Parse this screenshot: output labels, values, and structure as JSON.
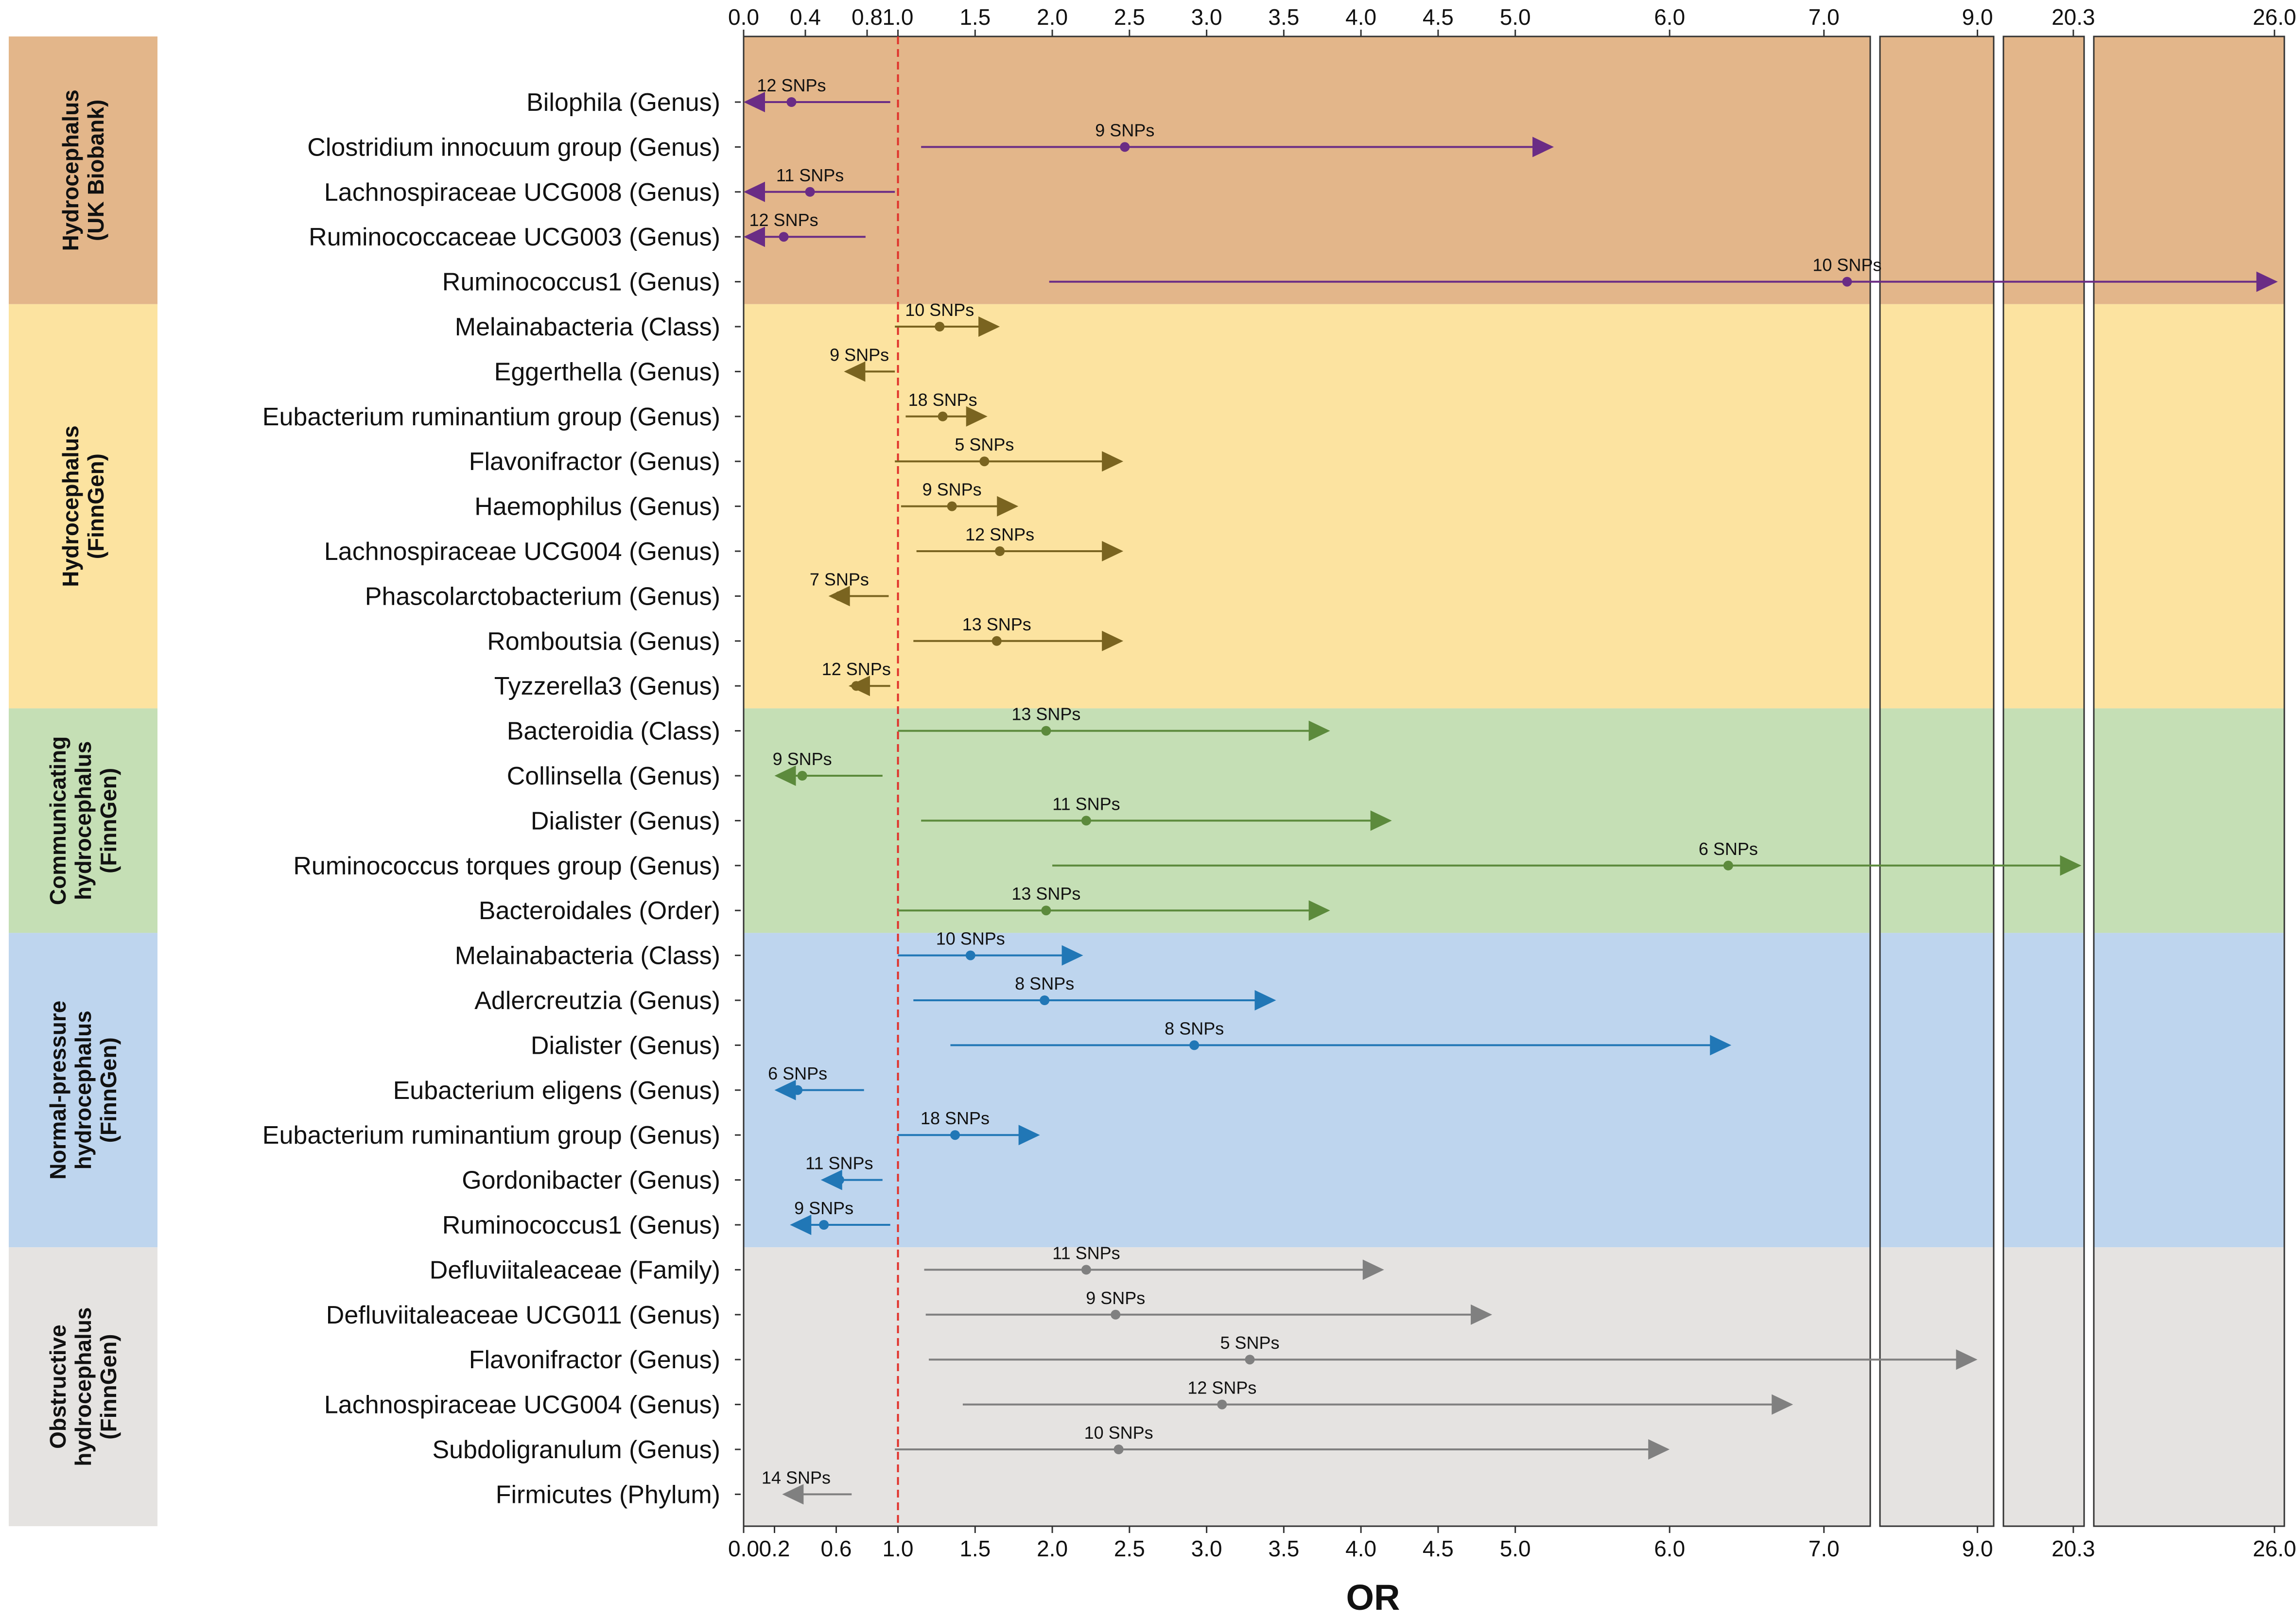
{
  "chart_data": {
    "type": "forest",
    "xlabel": "OR",
    "reference_line": 1.0,
    "segments": [
      {
        "min": 0.0,
        "max": 7.3,
        "top_ticks": [
          "0.0",
          "0.4",
          "0.8",
          "1.0",
          "1.5",
          "2.0",
          "2.5",
          "3.0",
          "3.5",
          "4.0",
          "4.5",
          "5.0",
          "6.0",
          "7.0"
        ],
        "bottom_ticks": [
          "0.0",
          "0.2",
          "0.6",
          "1.0",
          "1.5",
          "2.0",
          "2.5",
          "3.0",
          "3.5",
          "4.0",
          "4.5",
          "5.0",
          "6.0",
          "7.0"
        ]
      },
      {
        "min": 7.8,
        "max": 9.2,
        "top_ticks": [
          "9.0"
        ],
        "bottom_ticks": [
          "9.0"
        ]
      },
      {
        "min": 19.0,
        "max": 20.5,
        "top_ticks": [
          "20.3"
        ],
        "bottom_ticks": [
          "20.3"
        ]
      },
      {
        "min": 20.5,
        "max": 26.3,
        "top_ticks": [
          "26.0"
        ],
        "bottom_ticks": [
          "26.0"
        ]
      }
    ],
    "groups": [
      {
        "label_lines": [
          "Hydrocephalus",
          "(UK Biobank)"
        ],
        "bg": "#E3B68A",
        "line_color": "#6A2C85",
        "rows": [
          {
            "label": "Bilophila (Genus)",
            "or": 0.31,
            "lo": 0.0,
            "hi": 0.95,
            "snps": "12 SNPs",
            "arrow_left": true,
            "arrow_right": false
          },
          {
            "label": "Clostridium innocuum group (Genus)",
            "or": 2.47,
            "lo": 1.15,
            "hi": 5.25,
            "snps": "9 SNPs",
            "arrow_left": false,
            "arrow_right": true
          },
          {
            "label": "Lachnospiraceae UCG008 (Genus)",
            "or": 0.43,
            "lo": 0.0,
            "hi": 0.98,
            "snps": "11 SNPs",
            "arrow_left": true,
            "arrow_right": false
          },
          {
            "label": "Ruminococcaceae UCG003 (Genus)",
            "or": 0.26,
            "lo": 0.0,
            "hi": 0.79,
            "snps": "12 SNPs",
            "arrow_left": true,
            "arrow_right": false
          },
          {
            "label": "Ruminococcus1 (Genus)",
            "or": 7.15,
            "lo": 1.98,
            "hi": 26.1,
            "snps": "10 SNPs",
            "arrow_left": false,
            "arrow_right": true
          }
        ]
      },
      {
        "label_lines": [
          "Hydrocephalus",
          "(FinnGen)"
        ],
        "bg": "#FCE3A0",
        "line_color": "#7A6420",
        "rows": [
          {
            "label": "Melainabacteria (Class)",
            "or": 1.27,
            "lo": 0.98,
            "hi": 1.66,
            "snps": "10 SNPs",
            "arrow_left": false,
            "arrow_right": true
          },
          {
            "label": "Eggerthella (Genus)",
            "or": 0.75,
            "lo": 0.65,
            "hi": 0.98,
            "snps": "9 SNPs",
            "arrow_left": true,
            "arrow_right": false
          },
          {
            "label": "Eubacterium ruminantium group (Genus)",
            "or": 1.29,
            "lo": 1.05,
            "hi": 1.58,
            "snps": "18 SNPs",
            "arrow_left": false,
            "arrow_right": true
          },
          {
            "label": "Flavonifractor (Genus)",
            "or": 1.56,
            "lo": 0.98,
            "hi": 2.46,
            "snps": "5 SNPs",
            "arrow_left": false,
            "arrow_right": true
          },
          {
            "label": "Haemophilus (Genus)",
            "or": 1.35,
            "lo": 1.02,
            "hi": 1.78,
            "snps": "9 SNPs",
            "arrow_left": false,
            "arrow_right": true
          },
          {
            "label": "Lachnospiraceae UCG004 (Genus)",
            "or": 1.66,
            "lo": 1.12,
            "hi": 2.46,
            "snps": "12 SNPs",
            "arrow_left": false,
            "arrow_right": true
          },
          {
            "label": "Phascolarctobacterium (Genus)",
            "or": 0.62,
            "lo": 0.55,
            "hi": 0.94,
            "snps": "7 SNPs",
            "arrow_left": true,
            "arrow_right": false
          },
          {
            "label": "Romboutsia (Genus)",
            "or": 1.64,
            "lo": 1.1,
            "hi": 2.46,
            "snps": "13 SNPs",
            "arrow_left": false,
            "arrow_right": true
          },
          {
            "label": "Tyzzerella3 (Genus)",
            "or": 0.73,
            "lo": 0.68,
            "hi": 0.95,
            "snps": "12 SNPs",
            "arrow_left": true,
            "arrow_right": false
          }
        ]
      },
      {
        "label_lines": [
          "Communicating",
          "hydrocephalus",
          "(FinnGen)"
        ],
        "bg": "#C5DFB5",
        "line_color": "#5C8A3C",
        "rows": [
          {
            "label": "Bacteroidia (Class)",
            "or": 1.96,
            "lo": 1.0,
            "hi": 3.8,
            "snps": "13 SNPs",
            "arrow_left": false,
            "arrow_right": true
          },
          {
            "label": "Collinsella (Genus)",
            "or": 0.38,
            "lo": 0.2,
            "hi": 0.9,
            "snps": "9 SNPs",
            "arrow_left": true,
            "arrow_right": false
          },
          {
            "label": "Dialister (Genus)",
            "or": 2.22,
            "lo": 1.15,
            "hi": 4.2,
            "snps": "11 SNPs",
            "arrow_left": false,
            "arrow_right": true
          },
          {
            "label": "Ruminococcus torques group (Genus)",
            "or": 6.38,
            "lo": 2.0,
            "hi": 20.45,
            "snps": "6 SNPs",
            "arrow_left": false,
            "arrow_right": true
          },
          {
            "label": "Bacteroidales (Order)",
            "or": 1.96,
            "lo": 1.0,
            "hi": 3.8,
            "snps": "13 SNPs",
            "arrow_left": false,
            "arrow_right": true
          }
        ]
      },
      {
        "label_lines": [
          "Normal-pressure",
          "hydrocephalus",
          "(FinnGen)"
        ],
        "bg": "#BED5EE",
        "line_color": "#2177B6",
        "rows": [
          {
            "label": "Melainabacteria (Class)",
            "or": 1.47,
            "lo": 1.0,
            "hi": 2.2,
            "snps": "10 SNPs",
            "arrow_left": false,
            "arrow_right": true
          },
          {
            "label": "Adlercreutzia (Genus)",
            "or": 1.95,
            "lo": 1.1,
            "hi": 3.45,
            "snps": "8 SNPs",
            "arrow_left": false,
            "arrow_right": true
          },
          {
            "label": "Dialister (Genus)",
            "or": 2.92,
            "lo": 1.34,
            "hi": 6.4,
            "snps": "8 SNPs",
            "arrow_left": false,
            "arrow_right": true
          },
          {
            "label": "Eubacterium eligens (Genus)",
            "or": 0.35,
            "lo": 0.2,
            "hi": 0.78,
            "snps": "6 SNPs",
            "arrow_left": true,
            "arrow_right": false
          },
          {
            "label": "Eubacterium ruminantium group (Genus)",
            "or": 1.37,
            "lo": 1.0,
            "hi": 1.92,
            "snps": "18 SNPs",
            "arrow_left": false,
            "arrow_right": true
          },
          {
            "label": "Gordonibacter (Genus)",
            "or": 0.62,
            "lo": 0.5,
            "hi": 0.9,
            "snps": "11 SNPs",
            "arrow_left": true,
            "arrow_right": false
          },
          {
            "label": "Ruminococcus1 (Genus)",
            "or": 0.52,
            "lo": 0.3,
            "hi": 0.95,
            "snps": "9 SNPs",
            "arrow_left": true,
            "arrow_right": false
          }
        ]
      },
      {
        "label_lines": [
          "Obstructive",
          "hydrocephalus",
          "(FinnGen)"
        ],
        "bg": "#E5E3E1",
        "line_color": "#808080",
        "rows": [
          {
            "label": "Defluviitaleaceae (Family)",
            "or": 2.22,
            "lo": 1.17,
            "hi": 4.15,
            "snps": "11 SNPs",
            "arrow_left": false,
            "arrow_right": true
          },
          {
            "label": "Defluviitaleaceae UCG011 (Genus)",
            "or": 2.41,
            "lo": 1.18,
            "hi": 4.85,
            "snps": "9 SNPs",
            "arrow_left": false,
            "arrow_right": true
          },
          {
            "label": "Flavonifractor (Genus)",
            "or": 3.28,
            "lo": 1.2,
            "hi": 9.0,
            "snps": "5 SNPs",
            "arrow_left": false,
            "arrow_right": true
          },
          {
            "label": "Lachnospiraceae UCG004 (Genus)",
            "or": 3.1,
            "lo": 1.42,
            "hi": 6.8,
            "snps": "12 SNPs",
            "arrow_left": false,
            "arrow_right": true
          },
          {
            "label": "Subdoligranulum (Genus)",
            "or": 2.43,
            "lo": 0.98,
            "hi": 6.0,
            "snps": "10 SNPs",
            "arrow_left": false,
            "arrow_right": true
          },
          {
            "label": "Firmicutes (Phylum)",
            "or": 0.34,
            "lo": 0.25,
            "hi": 0.7,
            "snps": "14 SNPs",
            "arrow_left": true,
            "arrow_right": false
          }
        ]
      }
    ]
  }
}
